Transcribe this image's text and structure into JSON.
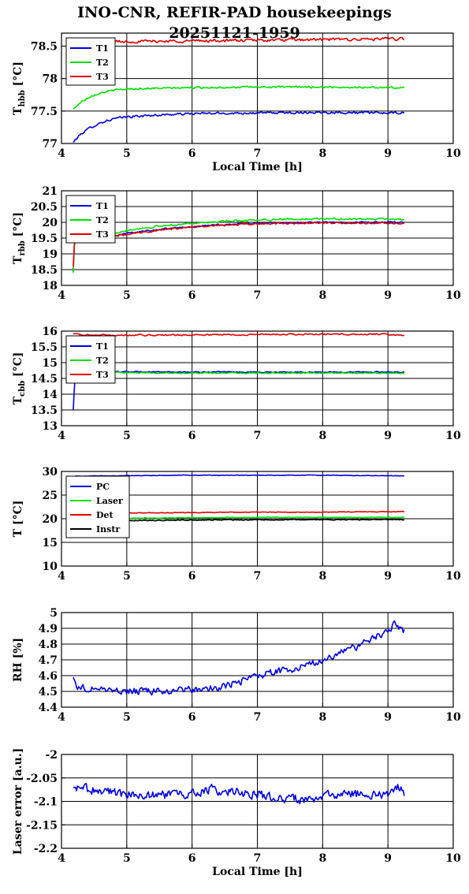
{
  "title_line1": "INO-CNR, REFIR-PAD housekeepings",
  "title_line2": "20251121-1959",
  "colors": {
    "blue": "#0000e0",
    "green": "#00e000",
    "red": "#e00000",
    "black": "#000000"
  },
  "chart_data": [
    {
      "type": "line",
      "ylabel_main": "T",
      "ylabel_sub": "hbb",
      "ylabel_unit": " [°C]",
      "xlabel": "Local Time [h]",
      "xlim": [
        4,
        10
      ],
      "ylim": [
        77,
        78.7
      ],
      "xticks": [
        4,
        5,
        6,
        7,
        8,
        9,
        10
      ],
      "yticks": [
        77,
        77.5,
        78,
        78.5
      ],
      "ytick_labels": [
        "77",
        "77.5",
        "78",
        "78.5"
      ],
      "grid": "horizontal",
      "legend": "top-left",
      "series": [
        {
          "name": "T1",
          "color": "blue",
          "x": [
            4.18,
            4.3,
            4.45,
            4.6,
            4.8,
            5.0,
            5.5,
            6.0,
            7.0,
            8.0,
            9.0,
            9.25
          ],
          "y": [
            77.02,
            77.15,
            77.25,
            77.32,
            77.38,
            77.41,
            77.44,
            77.46,
            77.47,
            77.48,
            77.47,
            77.47
          ],
          "noise": 0.015
        },
        {
          "name": "T2",
          "color": "green",
          "x": [
            4.18,
            4.3,
            4.45,
            4.6,
            4.8,
            5.0,
            5.5,
            6.0,
            7.0,
            8.0,
            9.0,
            9.25
          ],
          "y": [
            77.53,
            77.64,
            77.73,
            77.78,
            77.82,
            77.84,
            77.85,
            77.86,
            77.87,
            77.87,
            77.86,
            77.86
          ],
          "noise": 0.012
        },
        {
          "name": "T3",
          "color": "red",
          "x": [
            4.4,
            5.0,
            6.0,
            7.0,
            8.0,
            9.0,
            9.25
          ],
          "y": [
            78.57,
            78.57,
            78.58,
            78.59,
            78.6,
            78.61,
            78.61
          ],
          "noise": 0.02
        }
      ]
    },
    {
      "type": "line",
      "ylabel_main": "T",
      "ylabel_sub": "rbb",
      "ylabel_unit": " [°C]",
      "xlabel": "",
      "xlim": [
        4,
        10
      ],
      "ylim": [
        18,
        21
      ],
      "xticks": [
        4,
        5,
        6,
        7,
        8,
        9,
        10
      ],
      "yticks": [
        18,
        18.5,
        19,
        19.5,
        20,
        20.5,
        21
      ],
      "ytick_labels": [
        "18",
        "18.5",
        "19",
        "19.5",
        "20",
        "20.5",
        "21"
      ],
      "grid": "horizontal",
      "legend": "top-left",
      "series": [
        {
          "name": "T1",
          "color": "blue",
          "x": [
            4.18,
            4.2,
            4.4,
            4.8,
            5.0,
            5.5,
            6.0,
            6.5,
            7.0,
            8.0,
            9.0,
            9.25
          ],
          "y": [
            18.45,
            19.45,
            19.5,
            19.58,
            19.65,
            19.78,
            19.87,
            19.93,
            19.97,
            20.0,
            20.0,
            20.0
          ],
          "noise": 0.02
        },
        {
          "name": "T2",
          "color": "green",
          "x": [
            4.18,
            4.2,
            4.4,
            4.8,
            5.0,
            5.5,
            6.0,
            6.5,
            7.0,
            8.0,
            9.0,
            9.25
          ],
          "y": [
            18.4,
            19.5,
            19.55,
            19.65,
            19.75,
            19.88,
            19.97,
            20.03,
            20.08,
            20.11,
            20.1,
            20.1
          ],
          "noise": 0.025
        },
        {
          "name": "T3",
          "color": "red",
          "x": [
            4.18,
            4.2,
            4.4,
            4.8,
            5.0,
            5.5,
            6.0,
            6.5,
            7.0,
            8.0,
            9.0,
            9.25
          ],
          "y": [
            18.6,
            19.4,
            19.48,
            19.55,
            19.62,
            19.75,
            19.85,
            19.91,
            19.95,
            19.98,
            19.97,
            19.97
          ],
          "noise": 0.025
        }
      ]
    },
    {
      "type": "line",
      "ylabel_main": "T",
      "ylabel_sub": "cbb",
      "ylabel_unit": " [°C]",
      "xlabel": "",
      "xlim": [
        4,
        10
      ],
      "ylim": [
        13,
        16
      ],
      "xticks": [
        4,
        5,
        6,
        7,
        8,
        9,
        10
      ],
      "yticks": [
        13,
        13.5,
        14,
        14.5,
        15,
        15.5,
        16
      ],
      "ytick_labels": [
        "13",
        "13.5",
        "14",
        "14.5",
        "15",
        "15.5",
        "16"
      ],
      "grid": "horizontal",
      "legend": "top-left",
      "series": [
        {
          "name": "T1",
          "color": "blue",
          "x": [
            4.18,
            4.21,
            4.3,
            5.0,
            6.0,
            7.0,
            8.0,
            9.0,
            9.25
          ],
          "y": [
            13.5,
            14.7,
            14.72,
            14.71,
            14.7,
            14.7,
            14.7,
            14.7,
            14.7
          ],
          "noise": 0.015
        },
        {
          "name": "T2",
          "color": "green",
          "x": [
            4.18,
            4.21,
            4.3,
            5.0,
            6.0,
            7.0,
            8.0,
            9.0,
            9.25
          ],
          "y": [
            14.45,
            14.7,
            14.7,
            14.68,
            14.67,
            14.67,
            14.67,
            14.67,
            14.67
          ],
          "noise": 0.015
        },
        {
          "name": "T3",
          "color": "red",
          "x": [
            4.18,
            4.3,
            5.0,
            6.0,
            7.0,
            8.0,
            9.0,
            9.25
          ],
          "y": [
            15.92,
            15.88,
            15.87,
            15.88,
            15.89,
            15.9,
            15.9,
            15.87
          ],
          "noise": 0.02
        }
      ]
    },
    {
      "type": "line",
      "ylabel_main": "T",
      "ylabel_sub": "",
      "ylabel_unit": " [°C]",
      "xlabel": "",
      "xlim": [
        4,
        10
      ],
      "ylim": [
        10,
        30
      ],
      "xticks": [
        4,
        5,
        6,
        7,
        8,
        9,
        10
      ],
      "yticks": [
        10,
        15,
        20,
        25,
        30
      ],
      "ytick_labels": [
        "10",
        "15",
        "20",
        "25",
        "30"
      ],
      "grid": "horizontal",
      "legend": "top-left",
      "series": [
        {
          "name": "PC",
          "color": "blue",
          "x": [
            4.2,
            5.0,
            6.0,
            7.0,
            8.0,
            9.0,
            9.25
          ],
          "y": [
            29.0,
            29.1,
            29.2,
            29.2,
            29.2,
            29.1,
            29.1
          ],
          "noise": 0.05
        },
        {
          "name": "Laser",
          "color": "green",
          "x": [
            4.2,
            5.0,
            6.0,
            7.0,
            8.0,
            9.0,
            9.25
          ],
          "y": [
            20.0,
            20.1,
            20.2,
            20.3,
            20.3,
            20.3,
            20.3
          ],
          "noise": 0.06
        },
        {
          "name": "Det",
          "color": "red",
          "x": [
            4.2,
            5.0,
            6.0,
            7.0,
            8.0,
            9.0,
            9.25
          ],
          "y": [
            21.0,
            21.2,
            21.3,
            21.4,
            21.4,
            21.5,
            21.5
          ],
          "noise": 0.06
        },
        {
          "name": "Instr",
          "color": "black",
          "x": [
            4.2,
            5.0,
            6.0,
            7.0,
            8.0,
            9.0,
            9.25
          ],
          "y": [
            19.5,
            19.6,
            19.7,
            19.8,
            19.8,
            19.8,
            19.8
          ],
          "noise": 0.08
        }
      ]
    },
    {
      "type": "line",
      "ylabel_main": "RH [%]",
      "ylabel_sub": "",
      "ylabel_unit": "",
      "xlabel": "",
      "xlim": [
        4,
        10
      ],
      "ylim": [
        4.4,
        5.0
      ],
      "xticks": [
        4,
        5,
        6,
        7,
        8,
        9,
        10
      ],
      "yticks": [
        4.4,
        4.5,
        4.6,
        4.7,
        4.8,
        4.9,
        5.0
      ],
      "ytick_labels": [
        "4.4",
        "4.5",
        "4.6",
        "4.7",
        "4.8",
        "4.9",
        "5"
      ],
      "grid": "horizontal",
      "legend": "none",
      "series": [
        {
          "name": "",
          "color": "blue",
          "x": [
            4.18,
            4.25,
            4.5,
            5.0,
            5.5,
            6.0,
            6.5,
            7.0,
            7.5,
            8.0,
            8.5,
            9.0,
            9.1,
            9.25
          ],
          "y": [
            4.59,
            4.52,
            4.52,
            4.5,
            4.5,
            4.51,
            4.53,
            4.6,
            4.64,
            4.7,
            4.78,
            4.88,
            4.93,
            4.88
          ],
          "noise": 0.02
        }
      ]
    },
    {
      "type": "line",
      "ylabel_main": "Laser error [a.u.]",
      "ylabel_sub": "",
      "ylabel_unit": "",
      "xlabel": "Local Time [h]",
      "xlim": [
        4,
        10
      ],
      "ylim": [
        -2.2,
        -2.0
      ],
      "xticks": [
        4,
        5,
        6,
        7,
        8,
        9,
        10
      ],
      "yticks": [
        -2.2,
        -2.15,
        -2.1,
        -2.05,
        -2.0
      ],
      "ytick_labels": [
        "-2.2",
        "-2.15",
        "-2.1",
        "-2.05",
        "-2"
      ],
      "grid": "horizontal",
      "legend": "none",
      "series": [
        {
          "name": "",
          "color": "blue",
          "x": [
            4.18,
            5.0,
            6.0,
            6.3,
            7.0,
            7.9,
            8.0,
            9.0,
            9.18,
            9.25
          ],
          "y": [
            -2.07,
            -2.085,
            -2.085,
            -2.075,
            -2.085,
            -2.1,
            -2.085,
            -2.085,
            -2.07,
            -2.085
          ],
          "noise": 0.009
        }
      ]
    }
  ]
}
